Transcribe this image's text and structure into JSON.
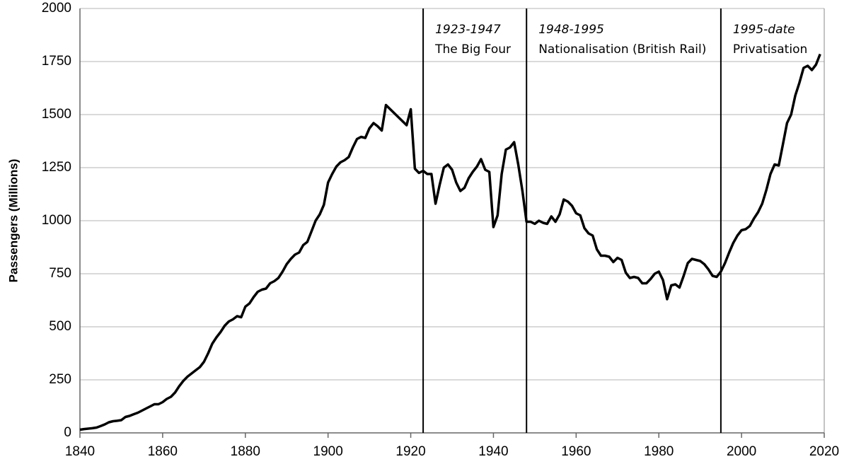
{
  "chart_data": {
    "type": "line",
    "y_label": "Passengers (Millions)",
    "xlim": [
      1840,
      2020
    ],
    "xticks": [
      1840,
      1860,
      1880,
      1900,
      1920,
      1940,
      1960,
      1980,
      2000,
      2020
    ],
    "ylim": [
      0,
      2000
    ],
    "yticks": [
      0,
      250,
      500,
      750,
      1000,
      1250,
      1500,
      1750,
      2000
    ],
    "grid": true,
    "periods": [
      {
        "x": 1923,
        "years": "1923-1947",
        "label": "The Big Four"
      },
      {
        "x": 1948,
        "years": "1948-1995",
        "label": "Nationalisation (British Rail)"
      },
      {
        "x": 1995,
        "years": "1995-date",
        "label": "Privatisation"
      }
    ],
    "series": [
      {
        "color": "#000000",
        "x": [
          1840,
          1841,
          1842,
          1843,
          1844,
          1845,
          1846,
          1847,
          1848,
          1849,
          1850,
          1851,
          1852,
          1853,
          1854,
          1855,
          1856,
          1857,
          1858,
          1859,
          1860,
          1861,
          1862,
          1863,
          1864,
          1865,
          1866,
          1867,
          1868,
          1869,
          1870,
          1871,
          1872,
          1873,
          1874,
          1875,
          1876,
          1877,
          1878,
          1879,
          1880,
          1881,
          1882,
          1883,
          1884,
          1885,
          1886,
          1887,
          1888,
          1889,
          1890,
          1891,
          1892,
          1893,
          1894,
          1895,
          1896,
          1897,
          1898,
          1899,
          1900,
          1901,
          1902,
          1903,
          1904,
          1905,
          1906,
          1907,
          1908,
          1909,
          1910,
          1911,
          1912,
          1913,
          1914,
          1919,
          1920,
          1921,
          1922,
          1923,
          1924,
          1925,
          1926,
          1927,
          1928,
          1929,
          1930,
          1931,
          1932,
          1933,
          1934,
          1935,
          1936,
          1937,
          1938,
          1939,
          1940,
          1941,
          1942,
          1943,
          1944,
          1945,
          1946,
          1947,
          1948,
          1949,
          1950,
          1951,
          1952,
          1953,
          1954,
          1955,
          1956,
          1957,
          1958,
          1959,
          1960,
          1961,
          1962,
          1963,
          1964,
          1965,
          1966,
          1967,
          1968,
          1969,
          1970,
          1971,
          1972,
          1973,
          1974,
          1975,
          1976,
          1977,
          1978,
          1979,
          1980,
          1981,
          1982,
          1983,
          1984,
          1985,
          1986,
          1987,
          1988,
          1989,
          1990,
          1991,
          1992,
          1993,
          1994,
          1995,
          1996,
          1997,
          1998,
          1999,
          2000,
          2001,
          2002,
          2003,
          2004,
          2005,
          2006,
          2007,
          2008,
          2009,
          2010,
          2011,
          2012,
          2013,
          2014,
          2015,
          2016,
          2017,
          2018,
          2019
        ],
        "values": [
          15,
          18,
          20,
          22,
          25,
          32,
          40,
          50,
          55,
          57,
          60,
          75,
          80,
          88,
          95,
          105,
          115,
          125,
          135,
          135,
          145,
          160,
          170,
          190,
          220,
          245,
          265,
          280,
          295,
          310,
          335,
          375,
          420,
          450,
          475,
          505,
          525,
          535,
          550,
          545,
          595,
          610,
          640,
          665,
          675,
          680,
          705,
          715,
          730,
          760,
          795,
          820,
          840,
          850,
          885,
          900,
          950,
          1000,
          1030,
          1075,
          1180,
          1220,
          1255,
          1275,
          1285,
          1300,
          1345,
          1385,
          1395,
          1390,
          1435,
          1460,
          1445,
          1425,
          1545,
          1450,
          1525,
          1245,
          1225,
          1235,
          1220,
          1220,
          1080,
          1170,
          1250,
          1265,
          1240,
          1180,
          1140,
          1155,
          1200,
          1230,
          1255,
          1290,
          1240,
          1230,
          970,
          1025,
          1220,
          1335,
          1345,
          1370,
          1265,
          1140,
          995,
          995,
          985,
          1000,
          990,
          985,
          1020,
          995,
          1030,
          1100,
          1090,
          1070,
          1035,
          1025,
          965,
          940,
          930,
          865,
          835,
          835,
          830,
          805,
          825,
          815,
          755,
          730,
          735,
          730,
          705,
          705,
          725,
          750,
          760,
          720,
          630,
          695,
          700,
          685,
          740,
          800,
          820,
          815,
          810,
          795,
          770,
          740,
          735,
          760,
          800,
          850,
          895,
          930,
          955,
          960,
          975,
          1010,
          1040,
          1080,
          1145,
          1220,
          1265,
          1260,
          1360,
          1460,
          1500,
          1590,
          1650,
          1720,
          1730,
          1710,
          1735,
          1785
        ]
      }
    ]
  }
}
